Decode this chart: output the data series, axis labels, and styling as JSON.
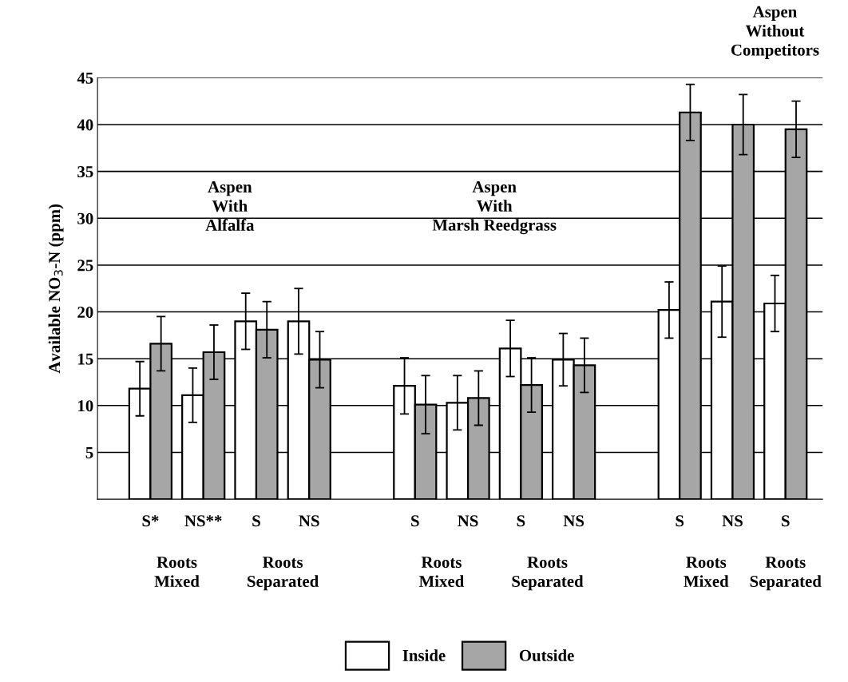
{
  "chart_data": {
    "type": "bar",
    "ylabel": "Available NO$_{3}$-N (ppm)",
    "categories": [
      "S*",
      "NS**",
      "S",
      "NS",
      null,
      "S",
      "NS",
      "S",
      "NS",
      null,
      "S",
      "NS",
      "S"
    ],
    "series": [
      {
        "name": "Inside",
        "color": "#ffffff",
        "values": [
          11.8,
          11.1,
          19.0,
          19.0,
          null,
          12.1,
          10.3,
          16.1,
          14.9,
          null,
          20.2,
          21.1,
          20.9
        ],
        "errors": [
          2.9,
          2.9,
          3.0,
          3.5,
          null,
          3.0,
          2.9,
          3.0,
          2.8,
          null,
          3.0,
          3.8,
          3.0
        ]
      },
      {
        "name": "Outside",
        "color": "#a6a6a6",
        "values": [
          16.6,
          15.7,
          18.1,
          14.9,
          null,
          10.1,
          10.8,
          12.2,
          14.3,
          null,
          41.3,
          40.0,
          39.5
        ],
        "errors": [
          2.9,
          2.9,
          3.0,
          3.0,
          null,
          3.1,
          2.9,
          2.9,
          2.9,
          null,
          3.0,
          3.2,
          3.0
        ]
      }
    ],
    "ylim": [
      0,
      45
    ],
    "yticks": [
      5,
      10,
      15,
      20,
      25,
      30,
      35,
      40,
      45
    ],
    "grid": "y",
    "legend": "bottom",
    "annotations": [
      "Roots\nMixed",
      "Roots\nSeparated",
      "Roots\nMixed",
      "Roots\nSeparated",
      "Roots\nMixed",
      "Roots\nSeparated",
      "Aspen\nWith\nAlfalfa",
      "Aspen\nWith\nMarsh Reedgrass",
      "Aspen\nWithout\nCompetitors"
    ]
  }
}
